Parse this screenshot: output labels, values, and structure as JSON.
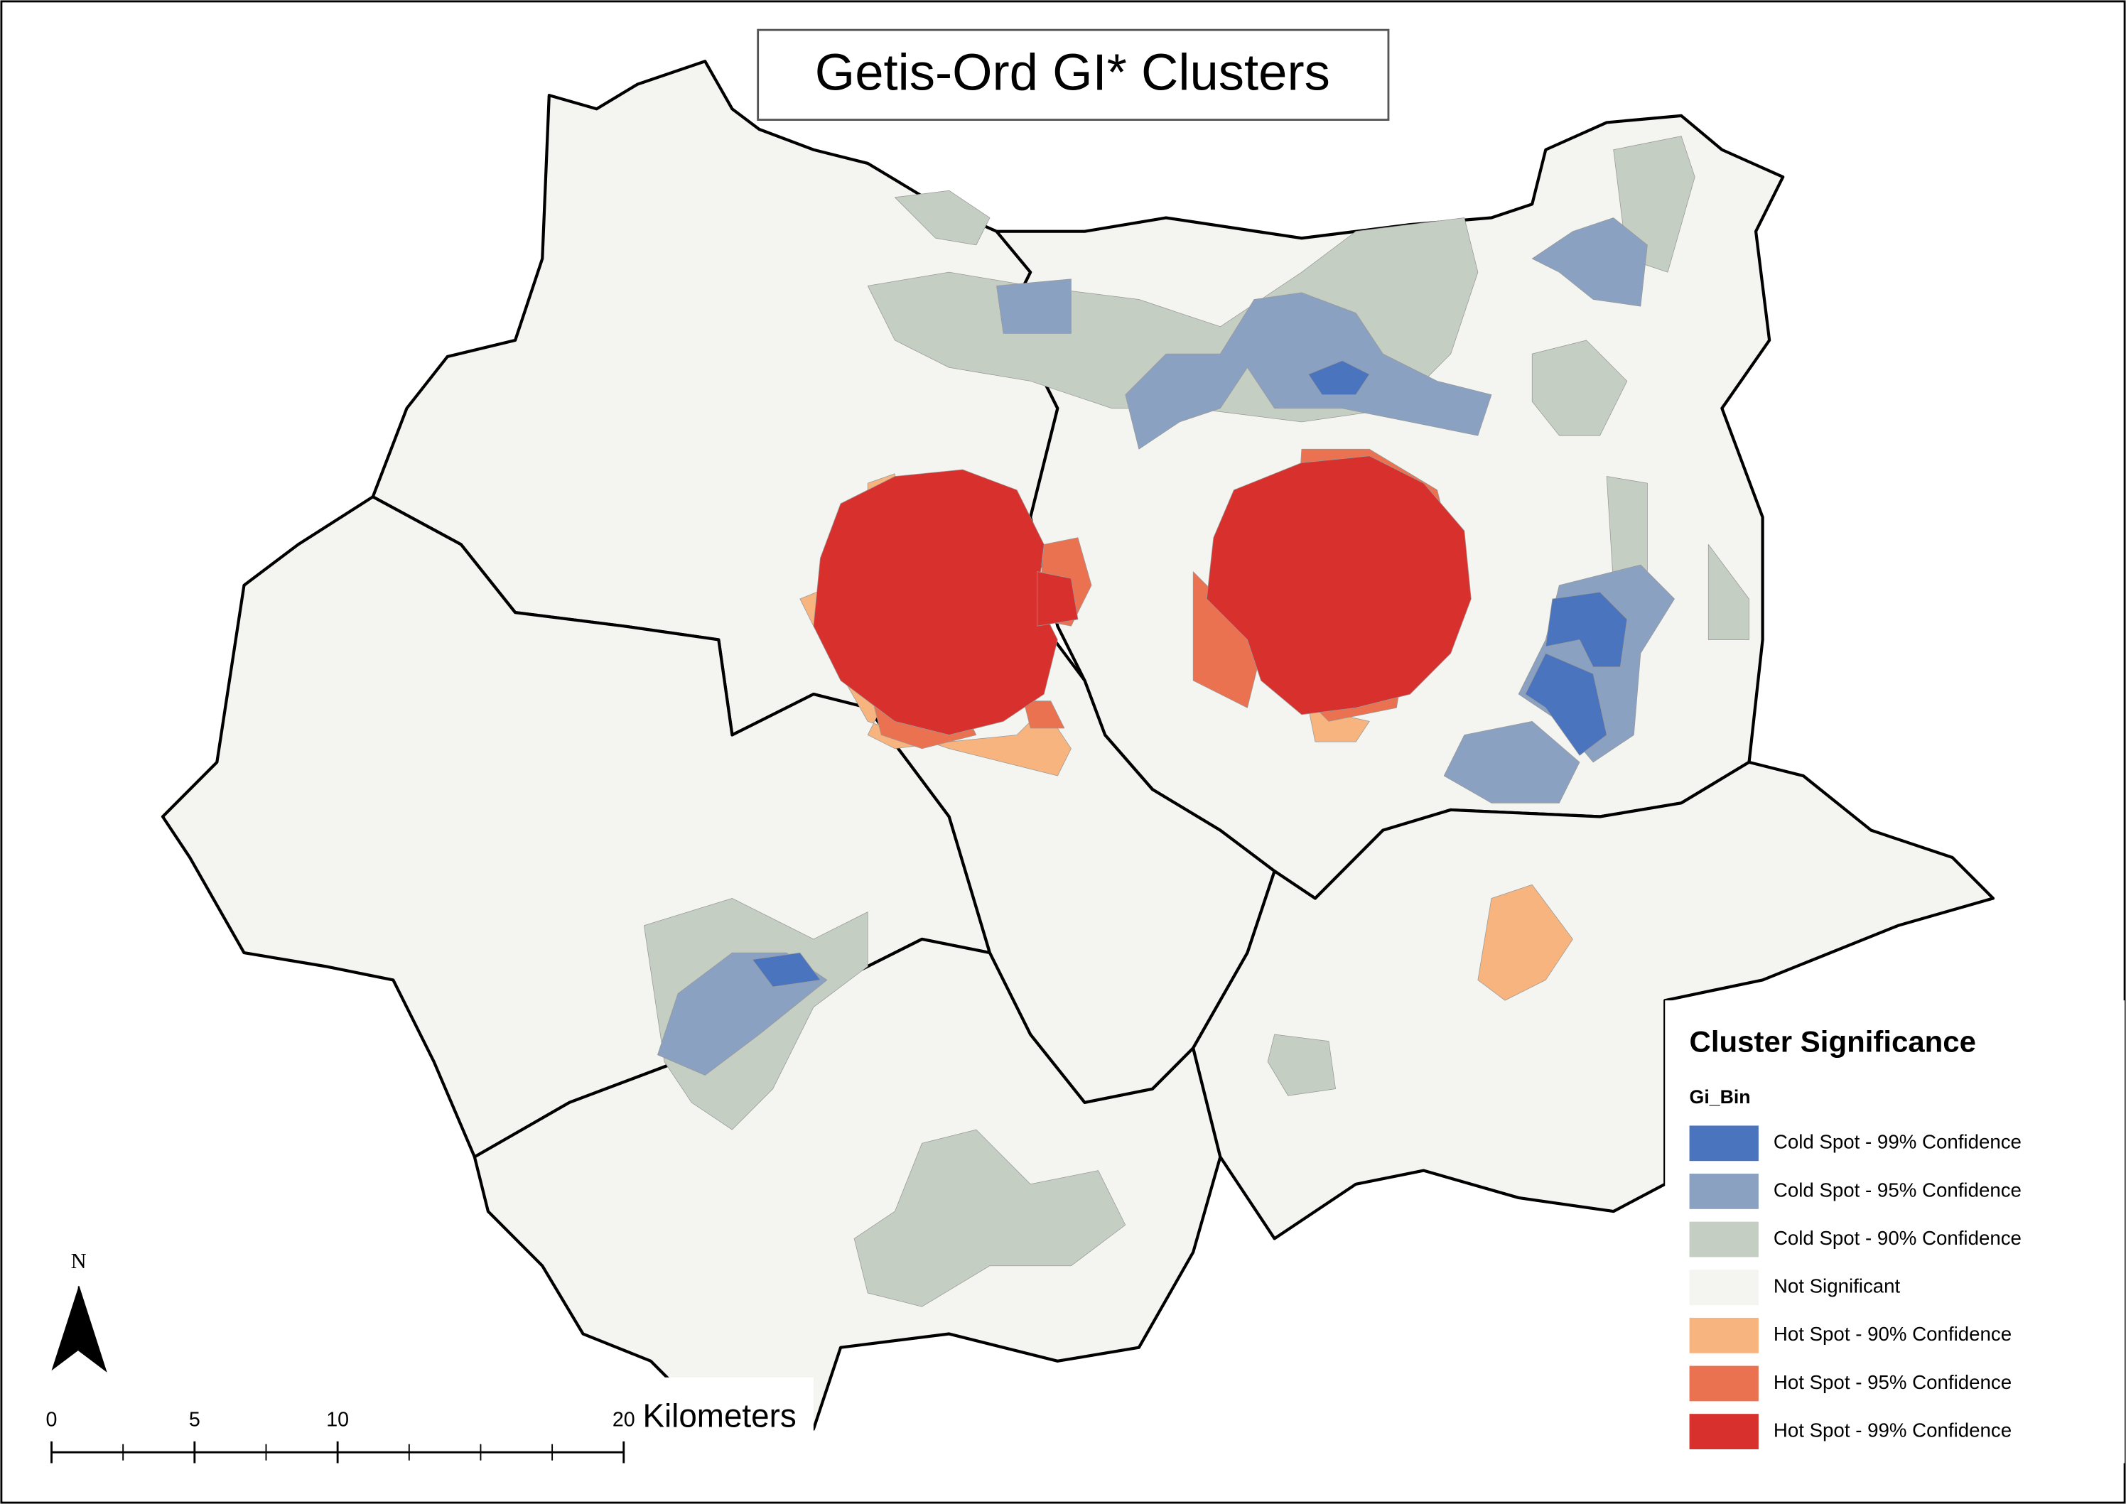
{
  "title": "Getis-Ord GI* Clusters",
  "legend": {
    "title": "Cluster Significance",
    "subtitle": "Gi_Bin",
    "items": [
      {
        "label": "Cold Spot - 99% Confidence",
        "color": "#4a74bd"
      },
      {
        "label": "Cold Spot - 95% Confidence",
        "color": "#8aa1c1"
      },
      {
        "label": "Cold Spot - 90% Confidence",
        "color": "#c4cec3"
      },
      {
        "label": "Not Significant",
        "color": "#f4f5f0"
      },
      {
        "label": "Hot Spot - 90% Confidence",
        "color": "#f8b47e"
      },
      {
        "label": "Hot Spot - 95% Confidence",
        "color": "#ea7251"
      },
      {
        "label": "Hot Spot - 99% Confidence",
        "color": "#d8302c"
      }
    ]
  },
  "north_arrow": "N",
  "scale_bar": {
    "ticks": [
      0,
      5,
      10,
      20
    ],
    "unit": "Kilometers"
  }
}
